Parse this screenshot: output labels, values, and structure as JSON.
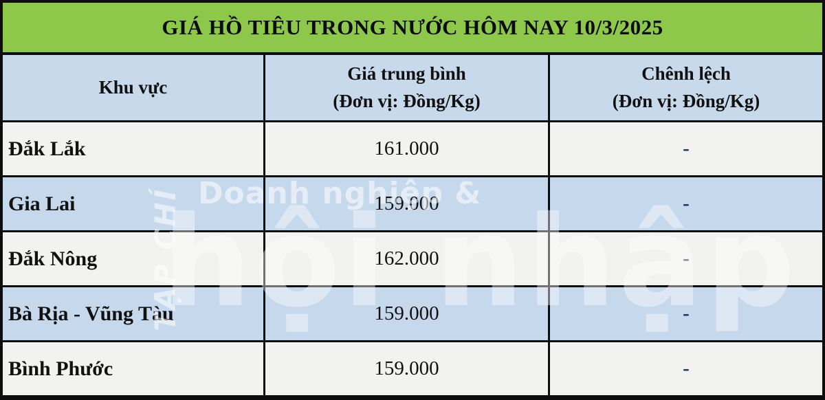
{
  "title": "GIÁ HỒ TIÊU TRONG NƯỚC HÔM NAY 10/3/2025",
  "table": {
    "columns": [
      {
        "label": "Khu vực",
        "sub": ""
      },
      {
        "label": "Giá trung bình",
        "sub": "(Đơn vị: Đồng/Kg)"
      },
      {
        "label": "Chênh lệch",
        "sub": "(Đơn vị: Đồng/Kg)"
      }
    ],
    "rows": [
      {
        "region": "Đắk Lắk",
        "price": "161.000",
        "diff": "-"
      },
      {
        "region": "Gia Lai",
        "price": "159.000",
        "diff": "-"
      },
      {
        "region": "Đắk Nông",
        "price": "162.000",
        "diff": "-"
      },
      {
        "region": "Bà Rịa - Vũng Tàu",
        "price": "159.000",
        "diff": "-"
      },
      {
        "region": "Bình Phước",
        "price": "159.000",
        "diff": "-"
      }
    ]
  },
  "watermark": {
    "vertical": "TẠP CHÍ",
    "line1": "Doanh nghiệp &",
    "line2": "hội nhập"
  },
  "colors": {
    "title_bg": "#8dc84b",
    "header_bg": "#c8d9ec",
    "row_blue": "#c5d8ec",
    "row_gray": "#f2f2f0",
    "border": "#0d0d0d",
    "dash": "#17375d"
  }
}
